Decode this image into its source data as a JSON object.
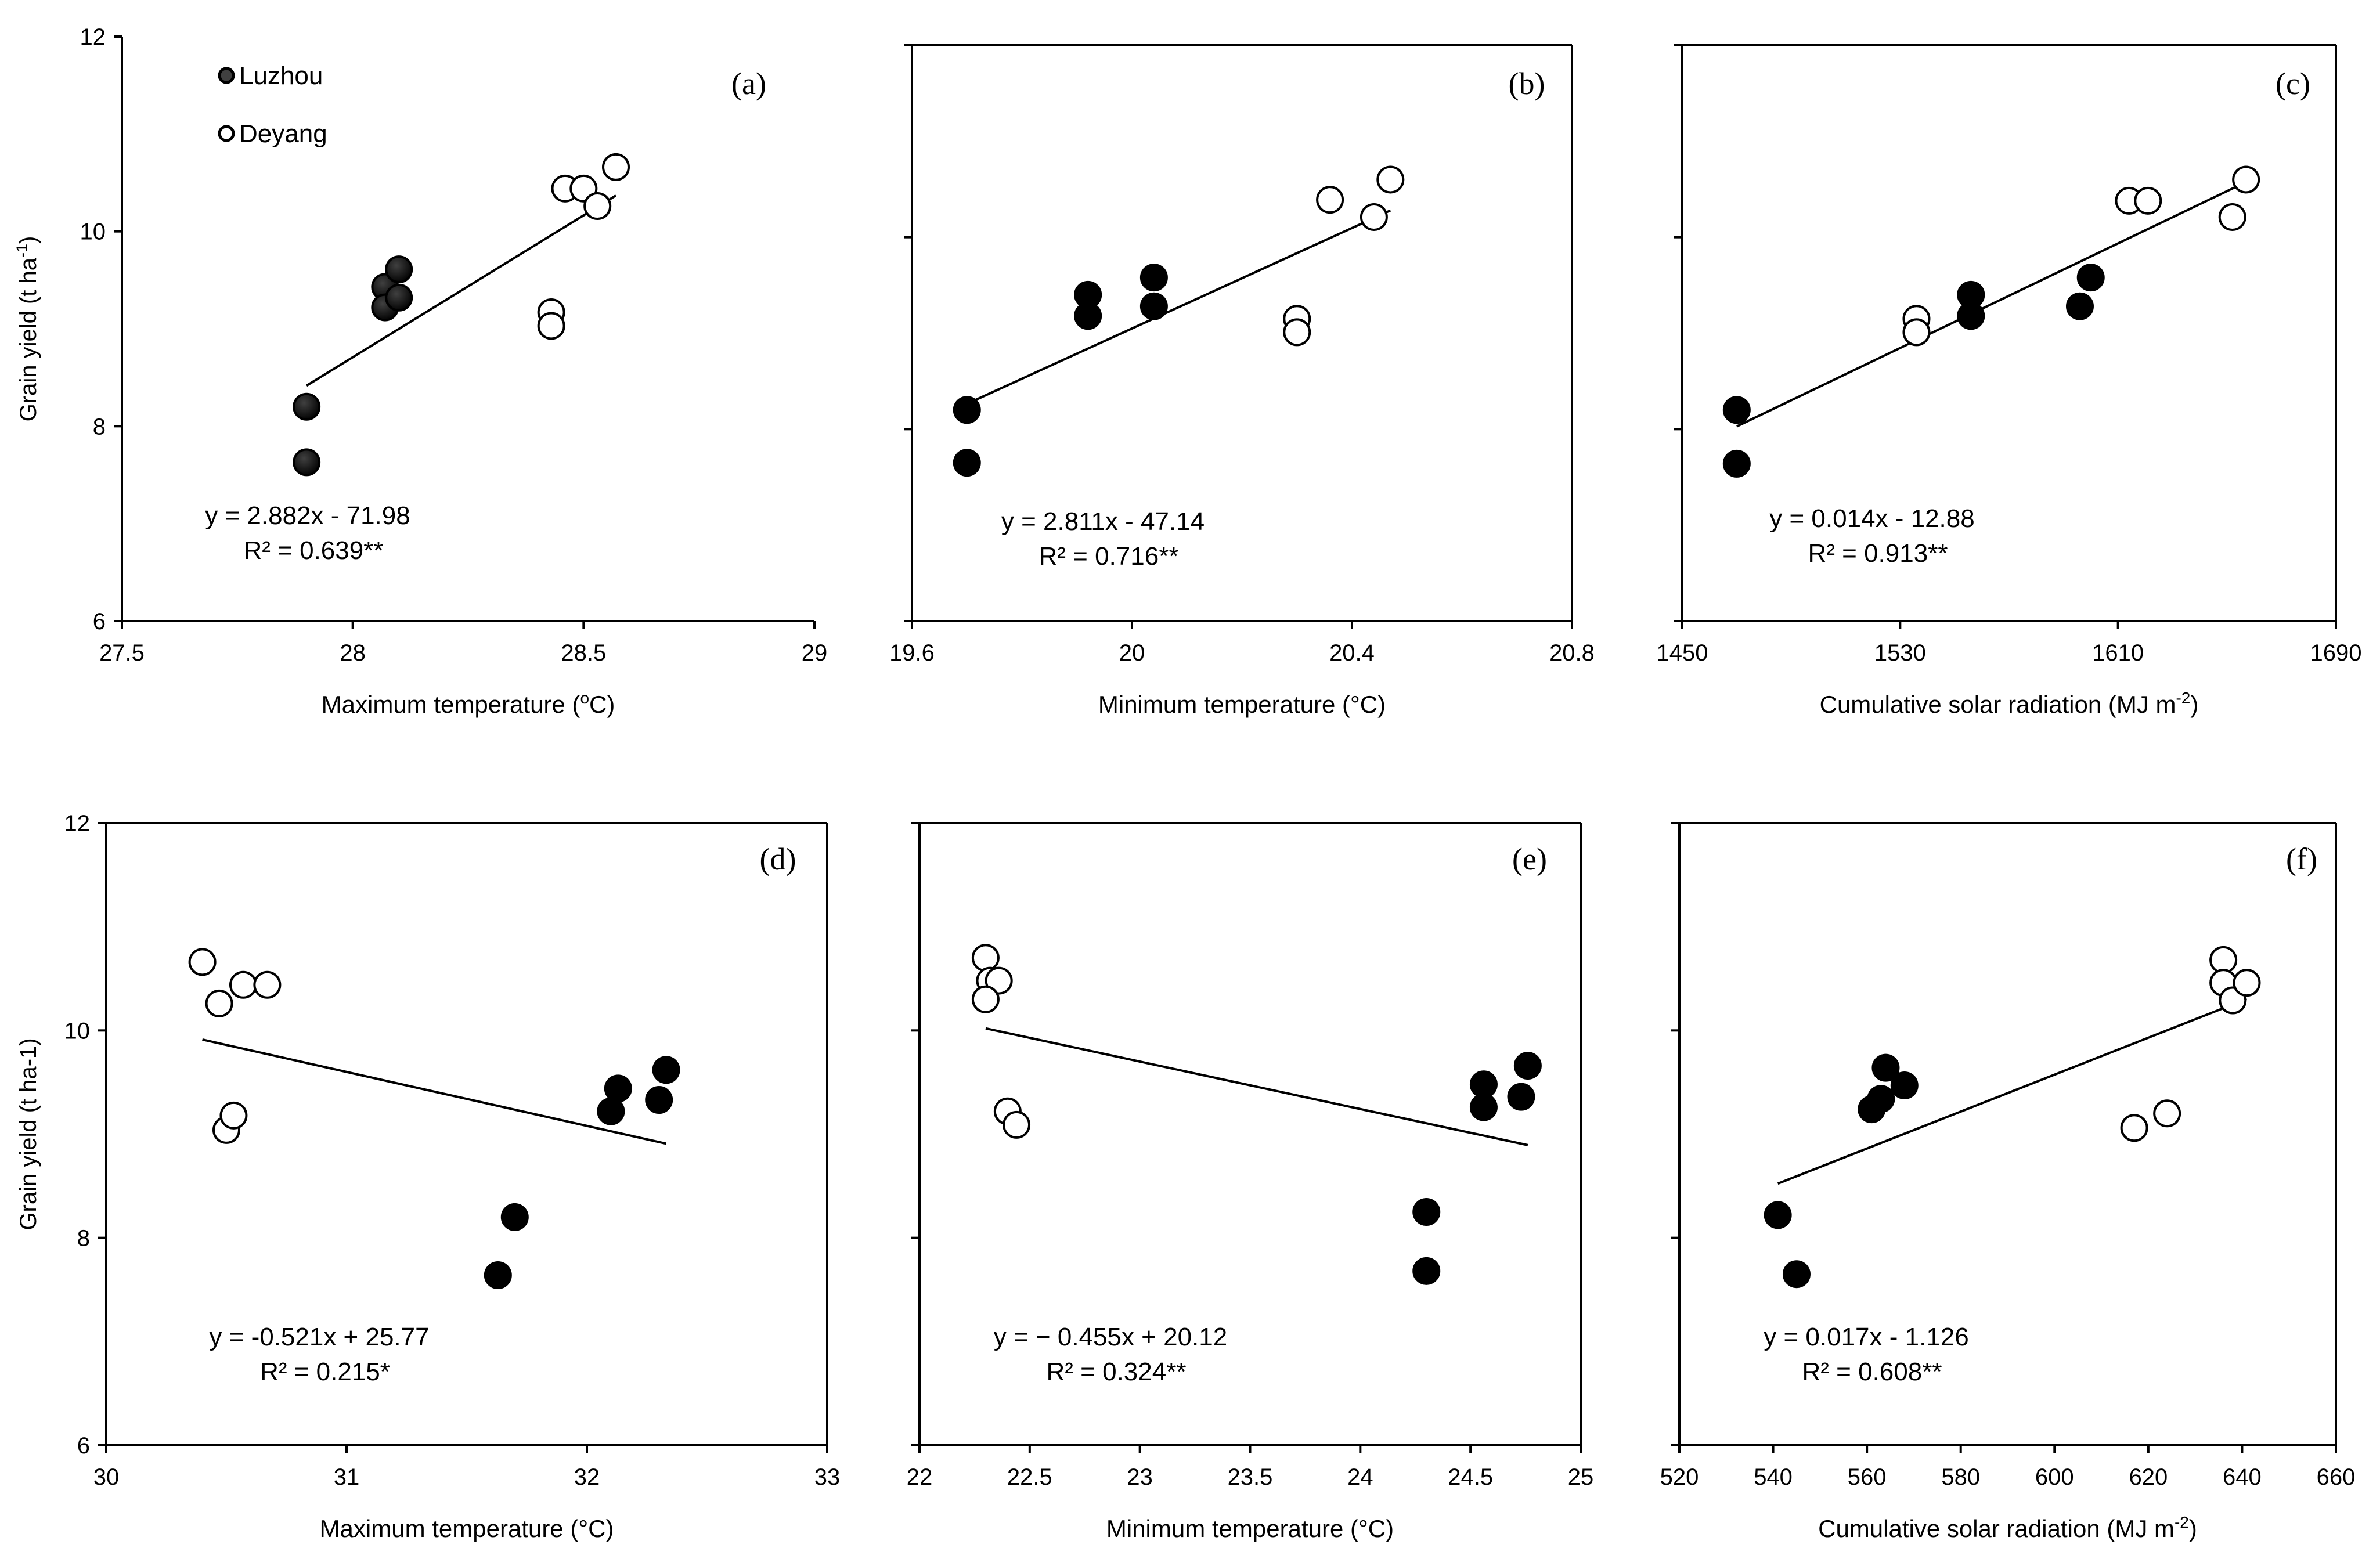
{
  "figure": {
    "legend": [
      {
        "label": "Luzhou",
        "marker": "filled"
      },
      {
        "label": "Deyang",
        "marker": "open"
      }
    ],
    "colors": {
      "axis": "#000000",
      "luzhou_fill_top": "#404040",
      "luzhou_fill_bottom": "#000000",
      "deyang_fill": "#ffffff"
    }
  },
  "chart_data": [
    {
      "id": "a",
      "type": "scatter",
      "panel_label": "(a)",
      "xlabel": "Maximum temperature (",
      "xlabel_sup": "o",
      "xlabel_tail": "C)",
      "ylabel": "Grain yield (t ha",
      "ylabel_sup": "-1",
      "ylabel_tail": ")",
      "xlim": [
        27.5,
        29
      ],
      "ylim": [
        6,
        12
      ],
      "xticks": [
        "27.5",
        "28",
        "28.5",
        "29"
      ],
      "yticks": [
        "6",
        "8",
        "10",
        "12"
      ],
      "show_ytick_labels": true,
      "series": [
        {
          "name": "Luzhou",
          "marker": "filled",
          "points": [
            [
              27.9,
              8.2
            ],
            [
              27.9,
              7.63
            ],
            [
              28.07,
              9.43
            ],
            [
              28.07,
              9.22
            ],
            [
              28.1,
              9.61
            ],
            [
              28.1,
              9.32
            ]
          ]
        },
        {
          "name": "Deyang",
          "marker": "open",
          "points": [
            [
              28.43,
              9.17
            ],
            [
              28.43,
              9.03
            ],
            [
              28.46,
              10.44
            ],
            [
              28.5,
              10.44
            ],
            [
              28.53,
              10.26
            ],
            [
              28.57,
              10.66
            ]
          ]
        }
      ],
      "trendline": {
        "x": [
          27.9,
          28.57
        ]
      },
      "equation": "y = 2.882x - 71.98",
      "r2": "R² = 0.639**"
    },
    {
      "id": "b",
      "type": "scatter",
      "panel_label": "(b)",
      "xlabel": "Minimum temperature (°C)",
      "xlabel_sup": "",
      "xlabel_tail": "",
      "xlim": [
        19.6,
        20.8
      ],
      "ylim": [
        6,
        12
      ],
      "xticks": [
        "19.6",
        "20",
        "20.4",
        "20.8"
      ],
      "yticks": [
        "6",
        "8",
        "10",
        "12"
      ],
      "show_ytick_labels": false,
      "series": [
        {
          "name": "Luzhou",
          "marker": "filled",
          "points": [
            [
              19.7,
              8.2
            ],
            [
              19.7,
              7.65
            ],
            [
              19.92,
              9.4
            ],
            [
              19.92,
              9.18
            ],
            [
              20.04,
              9.58
            ],
            [
              20.04,
              9.28
            ]
          ]
        },
        {
          "name": "Deyang",
          "marker": "open",
          "points": [
            [
              20.3,
              9.15
            ],
            [
              20.3,
              9.01
            ],
            [
              20.36,
              10.39
            ],
            [
              20.44,
              10.21
            ],
            [
              20.47,
              10.6
            ]
          ]
        }
      ],
      "trendline": {
        "x": [
          19.7,
          20.47
        ]
      },
      "equation": "y = 2.811x - 47.14",
      "r2": "R² = 0.716**"
    },
    {
      "id": "c",
      "type": "scatter",
      "panel_label": "(c)",
      "xlabel": "Cumulative solar radiation (MJ m",
      "xlabel_sup": "-2",
      "xlabel_tail": ")",
      "xlim": [
        1450,
        1690
      ],
      "ylim": [
        6,
        12
      ],
      "xticks": [
        "1450",
        "1530",
        "1610",
        "1690"
      ],
      "yticks": [
        "6",
        "8",
        "10",
        "12"
      ],
      "show_ytick_labels": false,
      "series": [
        {
          "name": "Luzhou",
          "marker": "filled",
          "points": [
            [
              1470,
              8.2
            ],
            [
              1470,
              7.64
            ],
            [
              1556,
              9.4
            ],
            [
              1556,
              9.18
            ],
            [
              1600,
              9.58
            ],
            [
              1596,
              9.28
            ]
          ]
        },
        {
          "name": "Deyang",
          "marker": "open",
          "points": [
            [
              1536,
              9.15
            ],
            [
              1536,
              9.01
            ],
            [
              1614,
              10.38
            ],
            [
              1621,
              10.38
            ],
            [
              1652,
              10.21
            ],
            [
              1657,
              10.6
            ]
          ]
        }
      ],
      "trendline": {
        "x": [
          1470,
          1657
        ]
      },
      "equation": "y = 0.014x - 12.88",
      "r2": "R² = 0.913**"
    },
    {
      "id": "d",
      "type": "scatter",
      "panel_label": "(d)",
      "xlabel": "Maximum temperature (°C)",
      "xlabel_sup": "",
      "xlabel_tail": "",
      "ylabel": "Grain yield (t ha-1)",
      "ylabel_sup": "",
      "ylabel_tail": "",
      "xlim": [
        30,
        33
      ],
      "ylim": [
        6,
        12
      ],
      "xticks": [
        "30",
        "31",
        "32",
        "33"
      ],
      "yticks": [
        "6",
        "8",
        "10",
        "12"
      ],
      "show_ytick_labels": true,
      "series": [
        {
          "name": "Luzhou",
          "marker": "filled",
          "points": [
            [
              31.63,
              7.64
            ],
            [
              31.7,
              8.2
            ],
            [
              32.1,
              9.22
            ],
            [
              32.13,
              9.44
            ],
            [
              32.3,
              9.33
            ],
            [
              32.33,
              9.62
            ]
          ]
        },
        {
          "name": "Deyang",
          "marker": "open",
          "points": [
            [
              30.4,
              10.66
            ],
            [
              30.47,
              10.26
            ],
            [
              30.5,
              9.04
            ],
            [
              30.53,
              9.18
            ],
            [
              30.57,
              10.44
            ],
            [
              30.67,
              10.44
            ]
          ]
        }
      ],
      "trendline": {
        "x": [
          30.4,
          32.33
        ]
      },
      "equation": "y = -0.521x + 25.77",
      "r2": "R² = 0.215*"
    },
    {
      "id": "e",
      "type": "scatter",
      "panel_label": "(e)",
      "xlabel": "Minimum temperature (°C)",
      "xlabel_sup": "",
      "xlabel_tail": "",
      "xlim": [
        22,
        25
      ],
      "ylim": [
        6,
        12
      ],
      "xticks": [
        "22",
        "22.5",
        "23",
        "23.5",
        "24",
        "24.5",
        "25"
      ],
      "yticks": [
        "6",
        "8",
        "10",
        "12"
      ],
      "show_ytick_labels": false,
      "series": [
        {
          "name": "Luzhou",
          "marker": "filled",
          "points": [
            [
              24.3,
              8.25
            ],
            [
              24.3,
              7.68
            ],
            [
              24.56,
              9.48
            ],
            [
              24.56,
              9.26
            ],
            [
              24.73,
              9.36
            ],
            [
              24.76,
              9.66
            ]
          ]
        },
        {
          "name": "Deyang",
          "marker": "open",
          "points": [
            [
              22.3,
              10.7
            ],
            [
              22.32,
              10.48
            ],
            [
              22.36,
              10.48
            ],
            [
              22.3,
              10.3
            ],
            [
              22.4,
              9.22
            ],
            [
              22.44,
              9.09
            ]
          ]
        }
      ],
      "trendline": {
        "x": [
          22.3,
          24.76
        ]
      },
      "equation": "y = − 0.455x + 20.12",
      "r2": "R² = 0.324**"
    },
    {
      "id": "f",
      "type": "scatter",
      "panel_label": "(f)",
      "xlabel": "Cumulative solar radiation (MJ m",
      "xlabel_sup": "-2",
      "xlabel_tail": ")",
      "xlim": [
        520,
        660
      ],
      "ylim": [
        6,
        12
      ],
      "xticks": [
        "520",
        "540",
        "560",
        "580",
        "600",
        "620",
        "640",
        "660"
      ],
      "yticks": [
        "6",
        "8",
        "10",
        "12"
      ],
      "show_ytick_labels": false,
      "series": [
        {
          "name": "Luzhou",
          "marker": "filled",
          "points": [
            [
              541,
              8.22
            ],
            [
              545,
              7.65
            ],
            [
              561,
              9.24
            ],
            [
              563,
              9.34
            ],
            [
              564,
              9.64
            ],
            [
              568,
              9.47
            ]
          ]
        },
        {
          "name": "Deyang",
          "marker": "open",
          "points": [
            [
              617,
              9.06
            ],
            [
              624,
              9.2
            ],
            [
              636,
              10.68
            ],
            [
              636,
              10.46
            ],
            [
              638,
              10.29
            ],
            [
              641,
              10.46
            ]
          ]
        }
      ],
      "trendline": {
        "x": [
          541,
          641
        ]
      },
      "equation": "y = 0.017x - 1.126",
      "r2": "R² = 0.608**"
    }
  ]
}
